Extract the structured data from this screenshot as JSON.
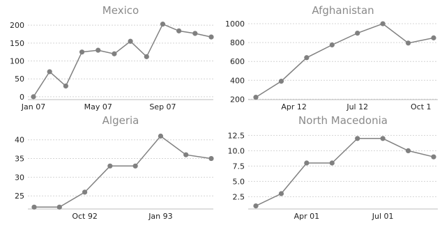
{
  "style": {
    "series_color": "#808080",
    "grid": true
  },
  "chart_data": [
    {
      "type": "line",
      "title": "Mexico",
      "x": [
        "Jan 07",
        "Feb 07",
        "Mar 07",
        "Apr 07",
        "May 07",
        "Jun 07",
        "Jul 07",
        "Aug 07",
        "Sep 07",
        "Oct 07",
        "Nov 07",
        "Dec 07"
      ],
      "values": [
        0,
        70,
        30,
        125,
        130,
        120,
        155,
        112,
        203,
        184,
        177,
        167
      ],
      "xticks": [
        "Jan 07",
        "May 07",
        "Sep 07"
      ],
      "yticks": [
        0,
        50,
        100,
        150,
        200
      ],
      "ylim": [
        -8,
        212
      ],
      "xlabel": "",
      "ylabel": ""
    },
    {
      "type": "line",
      "title": "Afghanistan",
      "x": [
        "Jan 12",
        "Mar 12",
        "May 12",
        "Jun 12",
        "Jul 12",
        "Aug 12",
        "Sep 12",
        "Oct 12"
      ],
      "values": [
        220,
        390,
        640,
        775,
        900,
        1000,
        795,
        850
      ],
      "xticks": [
        "Apr 12",
        "Jul 12",
        "Oct 1"
      ],
      "yticks": [
        200,
        400,
        600,
        800,
        1000
      ],
      "ylim": [
        195,
        1030
      ],
      "xlabel": "",
      "ylabel": ""
    },
    {
      "type": "line",
      "title": "Algeria",
      "x": [
        "Jul 92",
        "Aug 92",
        "Oct 92",
        "Nov 92",
        "Dec 92",
        "Jan 93",
        "Feb 93",
        "Mar 93"
      ],
      "values": [
        22,
        22,
        26,
        33,
        33,
        41,
        36,
        35
      ],
      "xticks": [
        "Oct 92",
        "Jan 93"
      ],
      "yticks": [
        25,
        30,
        35,
        40
      ],
      "ylim": [
        21.5,
        42
      ],
      "xlabel": "",
      "ylabel": ""
    },
    {
      "type": "line",
      "title": "North Macedonia",
      "x": [
        "Feb 01",
        "Mar 01",
        "Apr 01",
        "May 01",
        "Jun 01",
        "Jul 01",
        "Aug 01",
        "Sep 01"
      ],
      "values": [
        1,
        3,
        8,
        8,
        12,
        12,
        10,
        9
      ],
      "xticks": [
        "Apr 01",
        "Jul 01"
      ],
      "yticks": [
        2.5,
        5.0,
        7.5,
        10.0,
        12.5
      ],
      "ylim": [
        0.5,
        13
      ],
      "xlabel": "",
      "ylabel": ""
    }
  ]
}
